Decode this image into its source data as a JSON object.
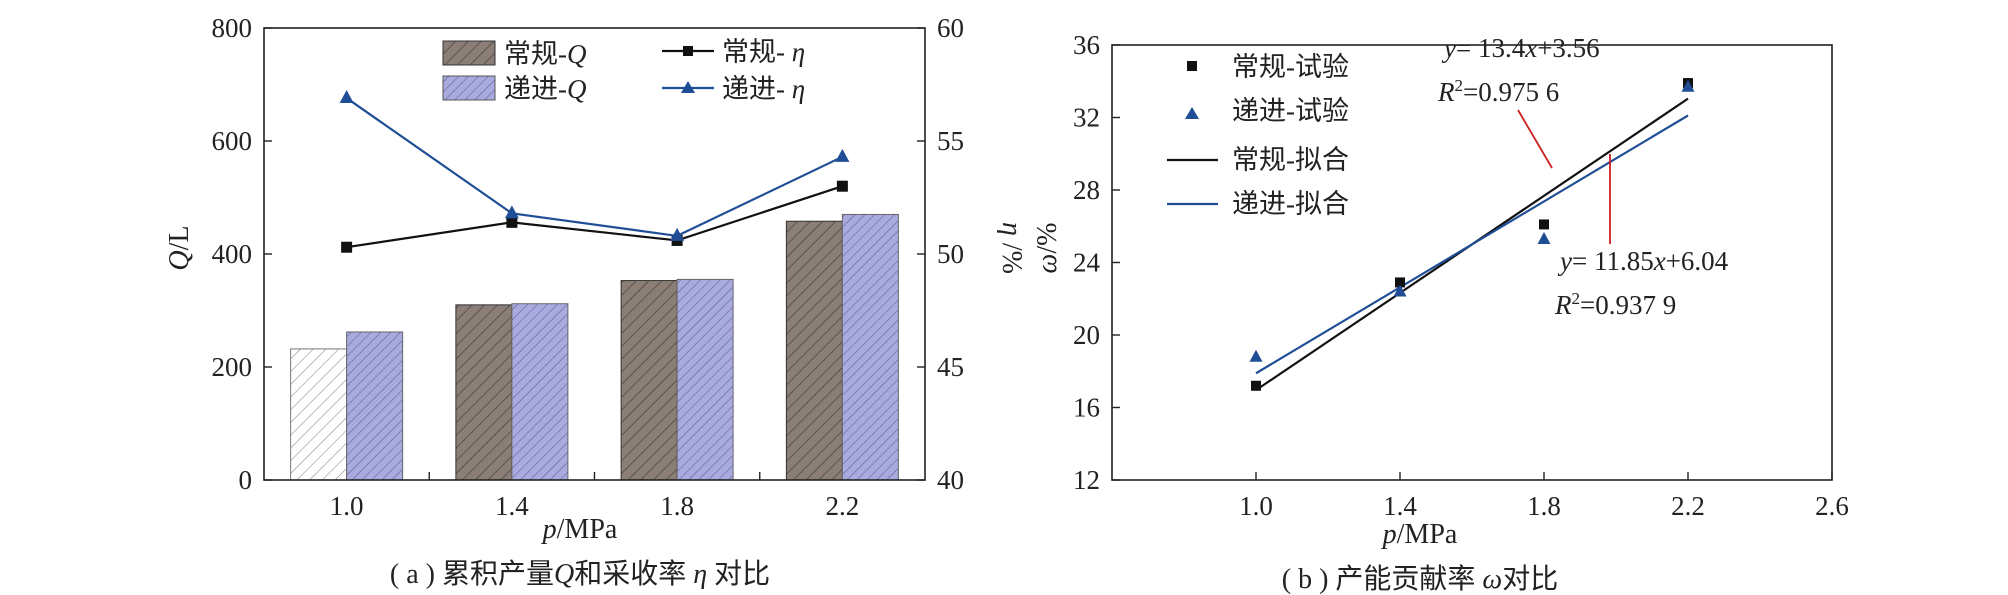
{
  "colors": {
    "conv_bar": "#8a7e76",
    "prog_bar": "#a9abde",
    "conv_line": "#111111",
    "prog_line": "#1f4e96",
    "axis": "#222222"
  },
  "chart_data": [
    {
      "type": "bar",
      "caption": "( a ) 累积产量Q和采收率 η 对比",
      "caption_parts": {
        "pre": "( a ) 累积产量",
        "q": "Q",
        "mid": "和采收率 ",
        "eta": "η",
        "post": " 对比"
      },
      "xlabel": {
        "var": "p",
        "unit": "/MPa"
      },
      "ylabel": {
        "var": "Q",
        "unit": "/L"
      },
      "y2label": {
        "var": "η",
        "unit": " /%"
      },
      "categories": [
        "1.0",
        "1.4",
        "1.8",
        "2.2"
      ],
      "ylim": [
        0,
        800
      ],
      "yticks": [
        "0",
        "200",
        "400",
        "600",
        "800"
      ],
      "y2lim": [
        40,
        60
      ],
      "y2ticks": [
        "40",
        "45",
        "50",
        "55",
        "60"
      ],
      "series": [
        {
          "name": "常规-Q",
          "kind": "bar",
          "values": [
            232,
            310,
            353,
            458
          ],
          "note_first_bar": "hatched white"
        },
        {
          "name": "递进-Q",
          "kind": "bar",
          "values": [
            262,
            312,
            355,
            470
          ]
        },
        {
          "name": "常规-η",
          "kind": "line",
          "marker": "square",
          "axis": "right",
          "values": [
            50.3,
            51.4,
            50.6,
            53.0
          ]
        },
        {
          "name": "递进-η",
          "kind": "line",
          "marker": "triangle",
          "axis": "right",
          "values": [
            56.9,
            51.8,
            50.8,
            54.3
          ]
        }
      ],
      "legend": {
        "items": [
          {
            "label": "常规-",
            "var": "Q"
          },
          {
            "label": "递进-",
            "var": "Q"
          },
          {
            "label": "常规- ",
            "var": "η"
          },
          {
            "label": "递进- ",
            "var": "η"
          }
        ],
        "placement": "top-center"
      }
    },
    {
      "type": "scatter",
      "caption": "( b ) 产能贡献率 ω对比",
      "caption_parts": {
        "pre": "( b ) 产能贡献率 ",
        "omega": "ω",
        "post": "对比"
      },
      "xlabel": {
        "var": "p",
        "unit": "/MPa"
      },
      "ylabel": {
        "var": "ω",
        "unit": "/%"
      },
      "xlim": [
        0.6,
        2.6
      ],
      "xticks": [
        "1.0",
        "1.4",
        "1.8",
        "2.2",
        "2.6"
      ],
      "ylim": [
        12,
        36
      ],
      "yticks": [
        "12",
        "16",
        "20",
        "24",
        "28",
        "32",
        "36"
      ],
      "series": [
        {
          "name": "常规-试验",
          "marker": "square",
          "x": [
            1.0,
            1.4,
            1.8,
            2.2
          ],
          "y": [
            17.2,
            22.9,
            26.1,
            33.9
          ]
        },
        {
          "name": "递进-试验",
          "marker": "triangle",
          "x": [
            1.0,
            1.4,
            1.8,
            2.2
          ],
          "y": [
            18.8,
            22.4,
            25.3,
            33.7
          ]
        },
        {
          "name": "常规-拟合",
          "kind": "line",
          "slope": 13.4,
          "intercept": 3.56,
          "x": [
            1.0,
            2.2
          ]
        },
        {
          "name": "递进-拟合",
          "kind": "line",
          "slope": 11.85,
          "intercept": 6.04,
          "x": [
            1.0,
            2.2
          ]
        }
      ],
      "annotations": [
        {
          "eq_var": "y",
          "eq_text": "= 13.4x+3.56",
          "eq_a": "= 13.4",
          "eq_x": "x",
          "eq_b": "+3.56",
          "r2_var": "R",
          "r2_sup": "2",
          "r2_text": "=0.975 6"
        },
        {
          "eq_var": "y",
          "eq_text": "= 11.85x+6.04",
          "eq_a": "= 11.85",
          "eq_x": "x",
          "eq_b": "+6.04",
          "r2_var": "R",
          "r2_sup": "2",
          "r2_text": "=0.937 9"
        }
      ],
      "legend": {
        "items": [
          "常规-试验",
          "递进-试验",
          "常规-拟合",
          "递进-拟合"
        ],
        "placement": "top-left"
      }
    }
  ]
}
